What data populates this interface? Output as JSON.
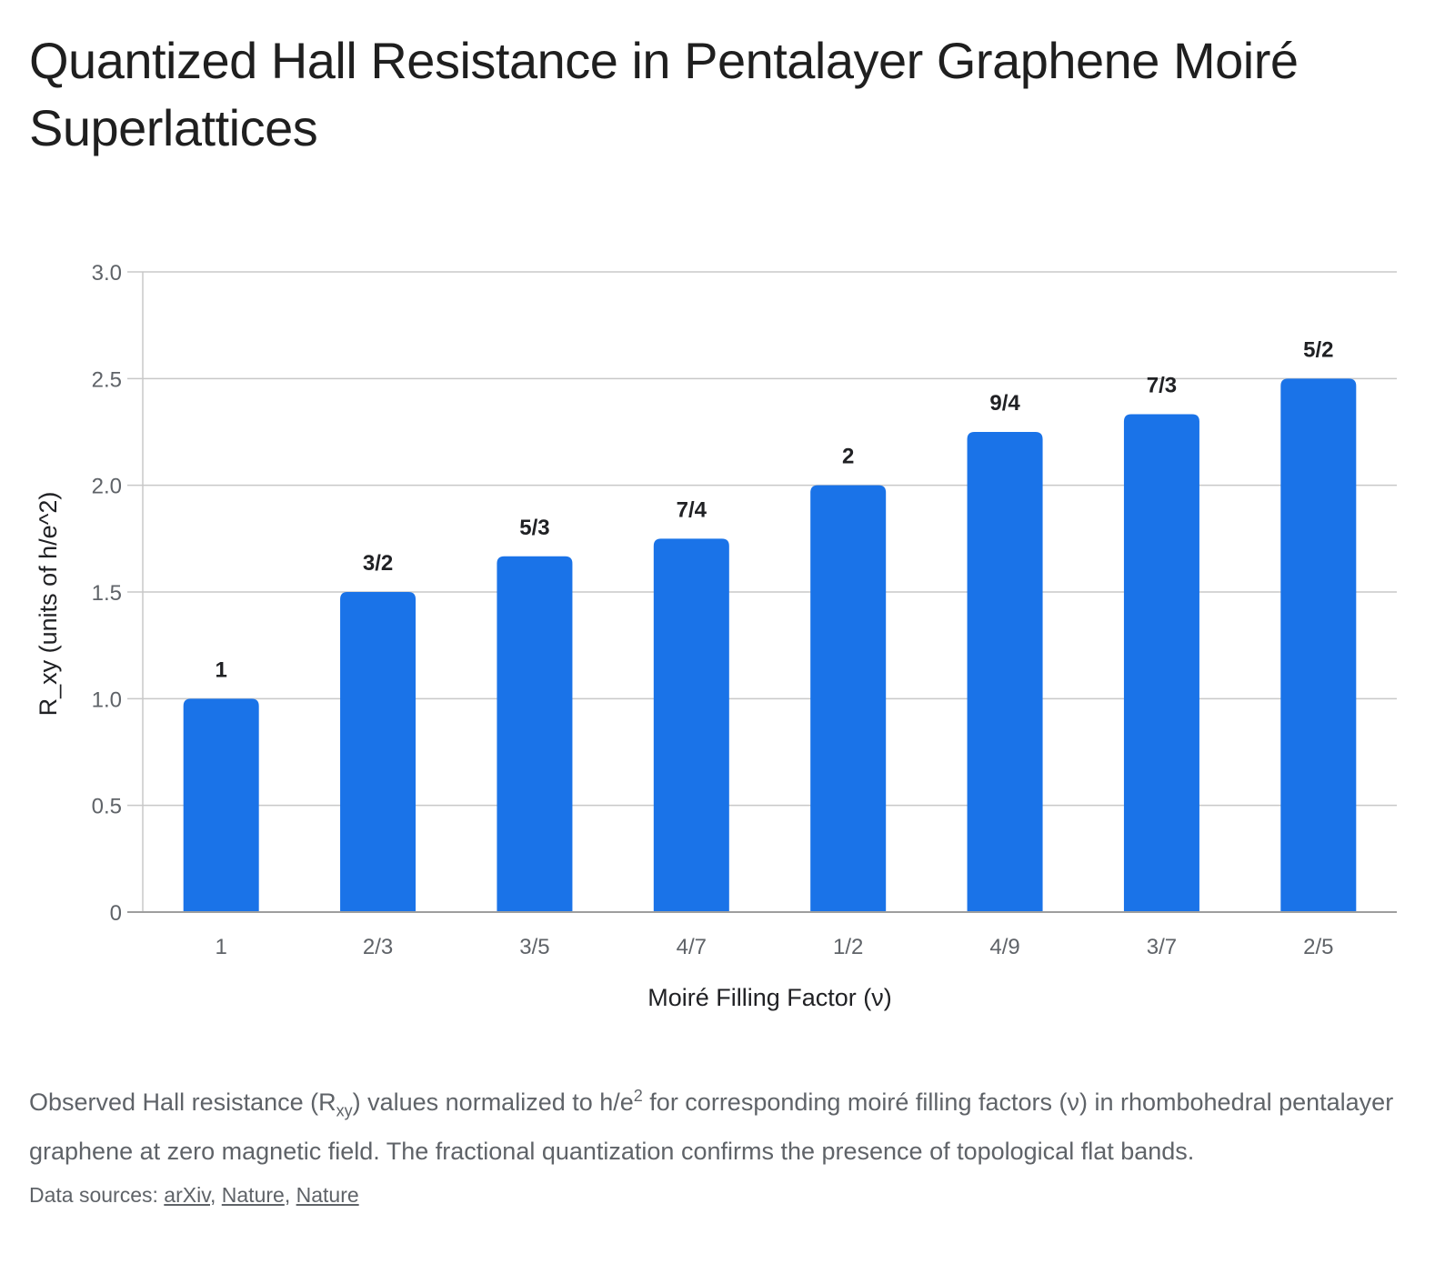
{
  "title": "Quantized Hall Resistance in Pentalayer Graphene Moiré Superlattices",
  "chart_data": {
    "type": "bar",
    "categories": [
      "1",
      "2/3",
      "3/5",
      "4/7",
      "1/2",
      "4/9",
      "3/7",
      "2/5"
    ],
    "values": [
      1.0,
      1.5,
      1.667,
      1.75,
      2.0,
      2.25,
      2.333,
      2.5
    ],
    "data_labels": [
      "1",
      "3/2",
      "5/3",
      "7/4",
      "2",
      "9/4",
      "7/3",
      "5/2"
    ],
    "xlabel": "Moiré Filling Factor (ν)",
    "ylabel": "R_xy (units of h/e^2)",
    "ylim": [
      0,
      3
    ],
    "yticks": [
      0,
      0.5,
      1,
      1.5,
      2,
      2.5,
      3
    ],
    "ytick_labels": [
      "0",
      "0.5",
      "1.0",
      "1.5",
      "2.0",
      "2.5",
      "3.0"
    ],
    "grid": true,
    "bar_color": "#1a73e8"
  },
  "caption": {
    "part1": "Observed Hall resistance (R",
    "sub": "xy",
    "part2": ") values normalized to h/e",
    "sup": "2",
    "part3": " for corresponding moiré filling factors (ν) in rhombohedral pentalayer graphene at zero magnetic field. The fractional quantization confirms the presence of topological flat bands."
  },
  "sources": {
    "label": "Data sources: ",
    "links": [
      "arXiv",
      "Nature",
      "Nature"
    ]
  }
}
